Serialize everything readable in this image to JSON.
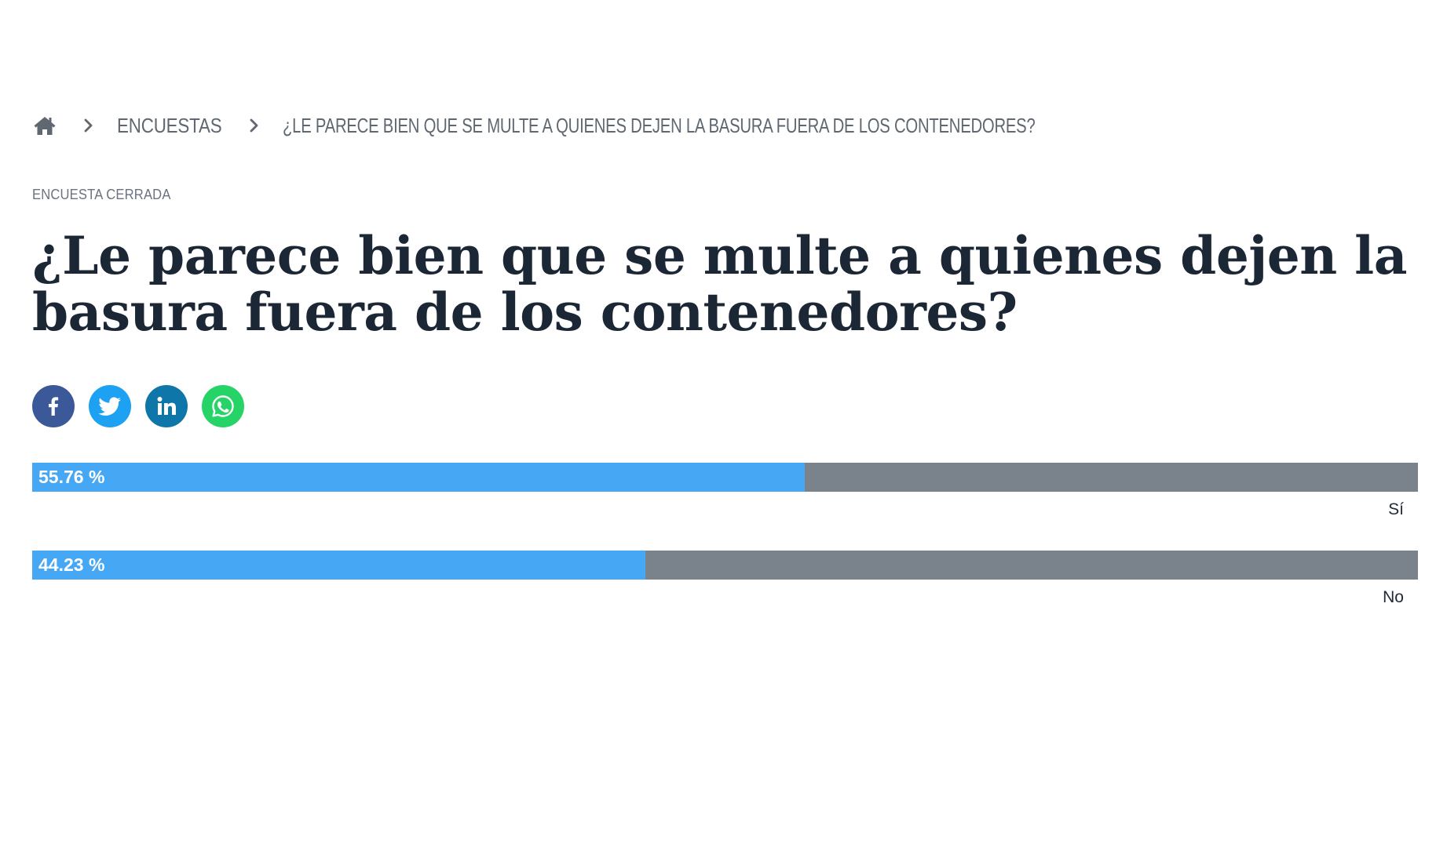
{
  "breadcrumb": {
    "home_icon": "home-icon",
    "separator_icon": "chevron-right-icon",
    "section": "ENCUESTAS",
    "current": "¿LE PARECE BIEN QUE SE MULTE A QUIENES DEJEN LA BASURA FUERA DE LOS CONTENEDORES?"
  },
  "poll": {
    "status": "ENCUESTA CERRADA",
    "title": "¿Le parece bien que se multe a quienes dejen la basura fuera de los contenedores?",
    "options": [
      {
        "label": "Sí",
        "percent_text": "55.76 %",
        "percent": 55.76
      },
      {
        "label": "No",
        "percent_text": "44.23 %",
        "percent": 44.23
      }
    ],
    "bar_fill_color": "#46a8f4",
    "bar_track_color": "#7a828c"
  },
  "share": {
    "icons": [
      {
        "name": "facebook-icon",
        "color": "#3b5998"
      },
      {
        "name": "twitter-icon",
        "color": "#1da1f2"
      },
      {
        "name": "linkedin-icon",
        "color": "#0e76a8"
      },
      {
        "name": "whatsapp-icon",
        "color": "#25d366"
      }
    ]
  }
}
